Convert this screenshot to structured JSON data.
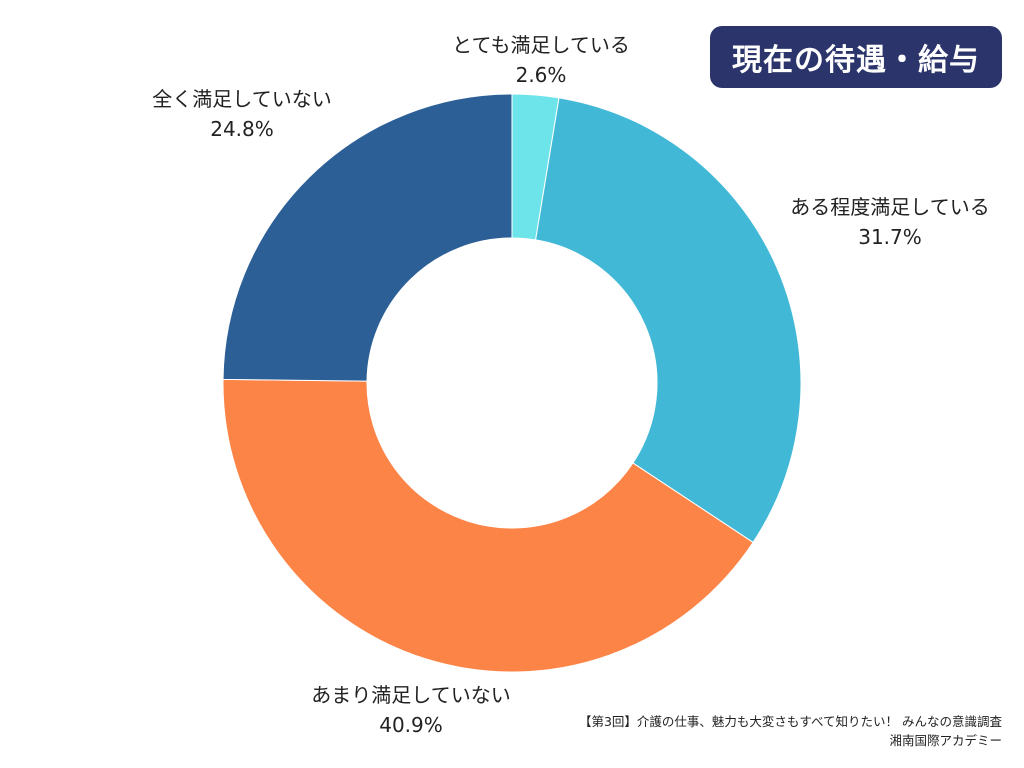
{
  "chart_data": {
    "type": "pie",
    "title": "現在の待遇・給与",
    "slices": [
      {
        "label": "とても満足している",
        "value": 2.6,
        "value_label": "2.6%",
        "color": "#6ce4ea"
      },
      {
        "label": "ある程度満足している",
        "value": 31.7,
        "value_label": "31.7%",
        "color": "#42b8d7"
      },
      {
        "label": "あまり満足していない",
        "value": 40.9,
        "value_label": "40.9%",
        "color": "#fd8447"
      },
      {
        "label": "全く満足していない",
        "value": 24.8,
        "value_label": "24.8%",
        "color": "#2d5f97"
      }
    ],
    "donut": true
  },
  "footer": {
    "source": "【第3回】介護の仕事、魅力も大変さもすべて知りたい！ みんなの意識調査",
    "org": "湘南国際アカデミー"
  }
}
